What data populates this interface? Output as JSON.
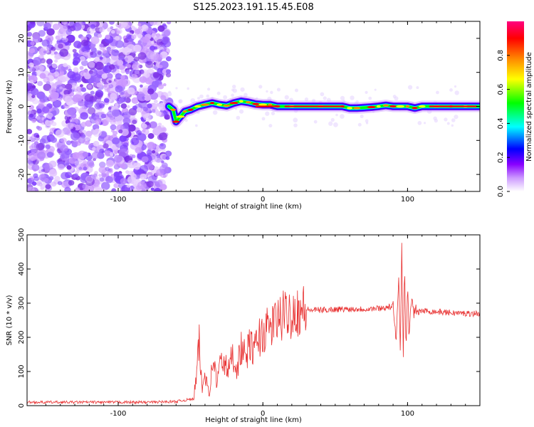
{
  "figure": {
    "title": "S125.2023.191.15.45.E08"
  },
  "chart_data": [
    {
      "type": "heatmap",
      "xlabel": "Height of straight line (km)",
      "ylabel": "Frequency (Hz)",
      "xlim": [
        -163,
        150
      ],
      "ylim": [
        -25,
        25
      ],
      "xticks": [
        -100,
        0,
        100
      ],
      "yticks": [
        -20,
        -10,
        0,
        10,
        20
      ],
      "colorbar": {
        "label": "Normalized spectral amplitude",
        "range": [
          0,
          1
        ],
        "ticks": [
          "0.0",
          "0.2",
          "0.4",
          "0.6",
          "0.8"
        ],
        "colors": [
          "#ffffff",
          "#cc99ff",
          "#8800ff",
          "#0000ff",
          "#00ffff",
          "#00ff00",
          "#ffff00",
          "#ff8800",
          "#ff0000",
          "#ff0080"
        ]
      },
      "noise_region_x": [
        -163,
        -65
      ],
      "ridge": {
        "name": "peak frequency",
        "x": [
          -65,
          -62,
          -60,
          -57,
          -54,
          -50,
          -45,
          -40,
          -35,
          -30,
          -25,
          -20,
          -15,
          -10,
          -5,
          0,
          5,
          10,
          20,
          40,
          55,
          60,
          65,
          75,
          80,
          85,
          90,
          95,
          100,
          105,
          110,
          120,
          130,
          140,
          150
        ],
        "y": [
          0,
          -1,
          -4.5,
          -3,
          -1.5,
          -1,
          0,
          0.5,
          1,
          0.5,
          0.2,
          1,
          1.5,
          1.2,
          0.7,
          0.5,
          0.5,
          0,
          0,
          0,
          0,
          -0.5,
          -0.5,
          -0.2,
          0,
          0.3,
          0,
          0,
          0,
          -0.5,
          0,
          0,
          0,
          0,
          0
        ]
      }
    },
    {
      "type": "line",
      "xlabel": "Height of straight line (km)",
      "ylabel": "SNR (10 * v/v)",
      "xlim": [
        -163,
        150
      ],
      "ylim": [
        0,
        500
      ],
      "xticks": [
        -100,
        0,
        100
      ],
      "yticks": [
        0,
        100,
        200,
        300,
        400,
        500
      ],
      "series": [
        {
          "color": "#e83030",
          "x": [
            -163,
            -120,
            -80,
            -60,
            -48,
            -46,
            -44,
            -42,
            -40,
            -37,
            -34,
            -32,
            -30,
            -27,
            -24,
            -21,
            -18,
            -15,
            -12,
            -9,
            -6,
            -3,
            0,
            5,
            10,
            15,
            20,
            25,
            30,
            40,
            50,
            60,
            70,
            80,
            85,
            90,
            92,
            94,
            95,
            96,
            97,
            98,
            99,
            100,
            101,
            103,
            105,
            110,
            120,
            130,
            140,
            150
          ],
          "y": [
            10,
            10,
            10,
            12,
            20,
            80,
            185,
            40,
            100,
            40,
            150,
            60,
            120,
            130,
            100,
            150,
            110,
            170,
            140,
            180,
            160,
            200,
            210,
            230,
            250,
            265,
            275,
            280,
            280,
            280,
            282,
            283,
            283,
            285,
            287,
            290,
            180,
            400,
            140,
            500,
            130,
            400,
            160,
            350,
            220,
            300,
            270,
            278,
            275,
            272,
            270,
            270
          ]
        }
      ]
    }
  ]
}
